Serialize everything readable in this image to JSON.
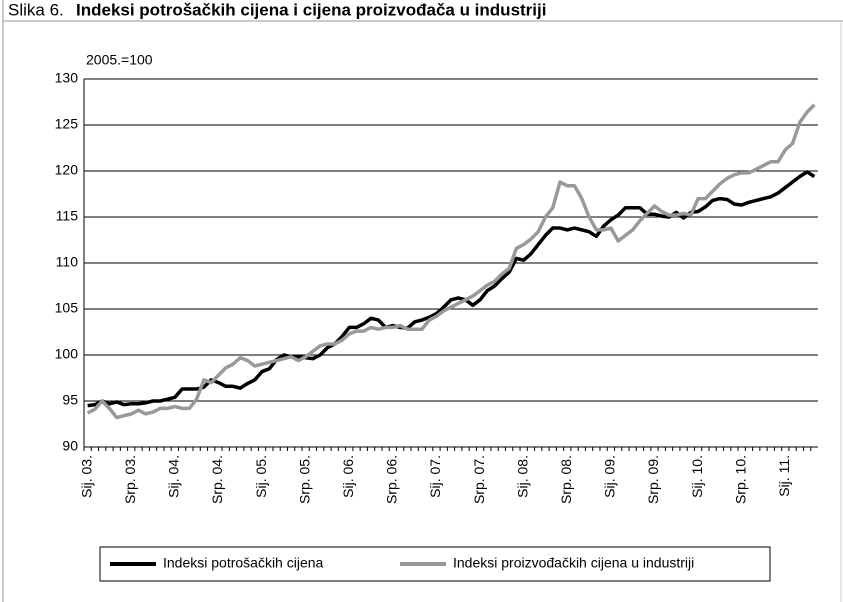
{
  "chart_data": {
    "type": "line",
    "figure_label": "Slika 6.",
    "title": "Indeksi potrošačkih cijena i cijena proizvođača u industriji",
    "y_unit": "2005.=100",
    "categories": [
      "Sij. 03.",
      null,
      null,
      null,
      null,
      null,
      "Srp. 03.",
      null,
      null,
      null,
      null,
      null,
      "Sij. 04.",
      null,
      null,
      null,
      null,
      null,
      "Srp. 04.",
      null,
      null,
      null,
      null,
      null,
      "Sij. 05.",
      null,
      null,
      null,
      null,
      null,
      "Srp. 05.",
      null,
      null,
      null,
      null,
      null,
      "Sij. 06.",
      null,
      null,
      null,
      null,
      null,
      "Srp. 06.",
      null,
      null,
      null,
      null,
      null,
      "Sij. 07.",
      null,
      null,
      null,
      null,
      null,
      "Srp. 07.",
      null,
      null,
      null,
      null,
      null,
      "Sij. 08.",
      null,
      null,
      null,
      null,
      null,
      "Srp. 08.",
      null,
      null,
      null,
      null,
      null,
      "Sij. 09.",
      null,
      null,
      null,
      null,
      null,
      "Srp. 09.",
      null,
      null,
      null,
      null,
      null,
      "Sij. 10.",
      null,
      null,
      null,
      null,
      null,
      "Srp. 10.",
      null,
      null,
      null,
      null,
      null,
      "Sij. 11.",
      null,
      null,
      null,
      null
    ],
    "series": [
      {
        "name": "Indeksi potrošačkih cijena",
        "color": "#000000",
        "values": [
          94.5,
          94.6,
          95.0,
          94.7,
          94.9,
          94.6,
          94.7,
          94.7,
          94.8,
          95.0,
          95.0,
          95.2,
          95.4,
          96.3,
          96.3,
          96.3,
          96.5,
          97.3,
          97.0,
          96.6,
          96.6,
          96.4,
          96.9,
          97.3,
          98.2,
          98.5,
          99.5,
          100.0,
          99.8,
          99.8,
          99.7,
          99.6,
          100.0,
          100.8,
          101.2,
          102.0,
          103.0,
          103.0,
          103.4,
          104.0,
          103.8,
          103.0,
          103.2,
          103.0,
          102.9,
          103.6,
          103.8,
          104.1,
          104.5,
          105.2,
          106.0,
          106.2,
          106.0,
          105.4,
          106.0,
          107.0,
          107.5,
          108.3,
          109.0,
          110.5,
          110.3,
          111.0,
          112.0,
          113.0,
          113.8,
          113.8,
          113.6,
          113.8,
          113.6,
          113.4,
          112.9,
          114.0,
          114.7,
          115.2,
          116.0,
          116.0,
          116.0,
          115.3,
          115.3,
          115.1,
          115.0,
          115.5,
          114.9,
          115.5,
          115.6,
          116.1,
          116.8,
          117.0,
          116.9,
          116.4,
          116.3,
          116.6,
          116.8,
          117.0,
          117.2,
          117.6,
          118.2,
          118.8,
          119.4,
          119.9,
          119.4
        ]
      },
      {
        "name": "Indeksi proizvođačkih cijena u industriji",
        "color": "#999999",
        "values": [
          93.7,
          94.1,
          95.0,
          94.2,
          93.2,
          93.4,
          93.6,
          94.0,
          93.6,
          93.8,
          94.2,
          94.2,
          94.4,
          94.2,
          94.2,
          95.2,
          97.3,
          97.0,
          97.8,
          98.6,
          99.0,
          99.7,
          99.4,
          98.8,
          99.0,
          99.2,
          99.4,
          99.6,
          99.8,
          99.4,
          99.8,
          100.4,
          101.0,
          101.2,
          101.2,
          101.6,
          102.3,
          102.6,
          102.6,
          103.0,
          102.8,
          103.0,
          103.0,
          103.2,
          102.8,
          102.8,
          102.8,
          103.8,
          104.2,
          104.8,
          105.2,
          105.6,
          106.0,
          106.4,
          107.0,
          107.6,
          108.0,
          108.8,
          109.4,
          111.6,
          112.0,
          112.6,
          113.4,
          115.0,
          116.0,
          118.8,
          118.4,
          118.4,
          117.0,
          115.0,
          113.6,
          113.6,
          113.8,
          112.4,
          113.0,
          113.6,
          114.6,
          115.4,
          116.2,
          115.6,
          115.2,
          115.2,
          115.4,
          115.2,
          117.0,
          117.0,
          117.8,
          118.6,
          119.2,
          119.6,
          119.8,
          119.8,
          120.2,
          120.6,
          121.0,
          121.0,
          122.3,
          123.0,
          125.3,
          126.4,
          127.2
        ]
      }
    ],
    "ylim": [
      90,
      130
    ],
    "yticks": [
      90,
      95,
      100,
      105,
      110,
      115,
      120,
      125,
      130
    ],
    "grid": true
  }
}
